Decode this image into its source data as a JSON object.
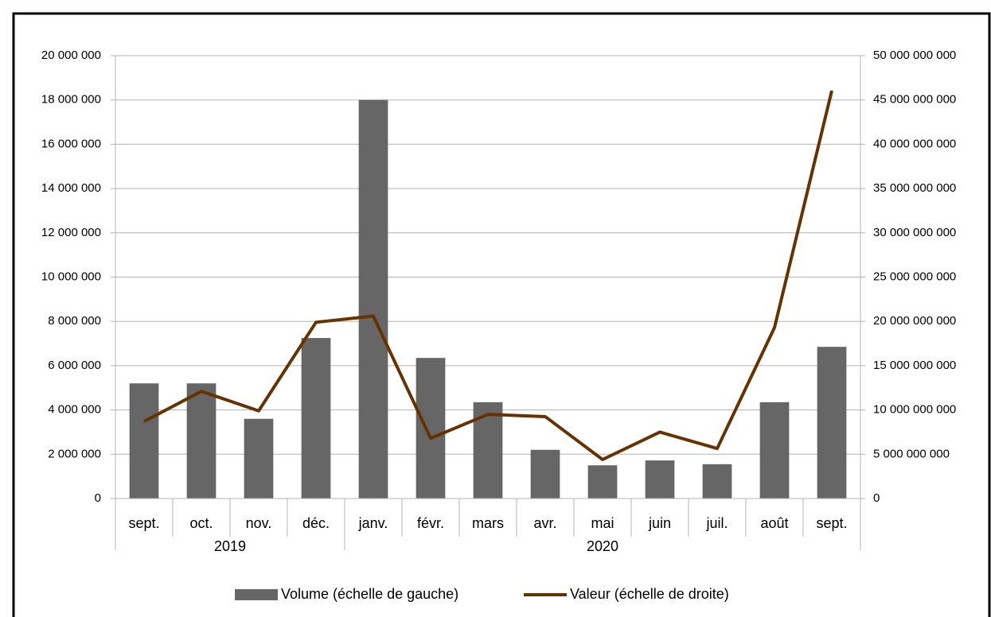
{
  "chart_data": {
    "type": "bar_line",
    "categories": [
      "sept.",
      "oct.",
      "nov.",
      "déc.",
      "janv.",
      "févr.",
      "mars",
      "avr.",
      "mai",
      "juin",
      "juil.",
      "août",
      "sept."
    ],
    "groups": [
      {
        "label": "2019",
        "count": 4
      },
      {
        "label": "2020",
        "count": 9
      }
    ],
    "series": [
      {
        "name": "Volume (échelle de gauche)",
        "type": "bar",
        "color": "#666666",
        "values": [
          5200000,
          5200000,
          3600000,
          7250000,
          18000000,
          6350000,
          4350000,
          2200000,
          1500000,
          1720000,
          1550000,
          4350000,
          6850000
        ]
      },
      {
        "name": "Valeur (échelle de droite)",
        "type": "line",
        "axis": "y2",
        "color": "#663300",
        "values": [
          8700000000,
          12100000000,
          9900000000,
          19900000000,
          20600000000,
          6800000000,
          9500000000,
          9250000000,
          4400000000,
          7500000000,
          5650000000,
          19300000000,
          46050000000
        ]
      }
    ],
    "ylim": [
      0,
      20000000
    ],
    "yticks": [
      0,
      {
        "value": 2000000,
        "label": "2 000 000"
      },
      {
        "value": 4000000,
        "label": "4 000 000"
      },
      {
        "value": 6000000,
        "label": "6 000 000"
      },
      {
        "value": 8000000,
        "label": "8 000 000"
      },
      {
        "value": 10000000,
        "label": "10 000 000"
      },
      {
        "value": 12000000,
        "label": "12 000 000"
      },
      {
        "value": 14000000,
        "label": "14 000 000"
      },
      {
        "value": 16000000,
        "label": "16 000 000"
      },
      {
        "value": 18000000,
        "label": "18 000 000"
      },
      {
        "value": 20000000,
        "label": "20 000 000"
      }
    ],
    "y2lim": [
      0,
      50000000000
    ],
    "y2ticks": [
      0,
      {
        "value": 5000000000,
        "label": "5 000 000 000"
      },
      {
        "value": 10000000000,
        "label": "10 000 000 000"
      },
      {
        "value": 15000000000,
        "label": "15 000 000 000"
      },
      {
        "value": 20000000000,
        "label": "20 000 000 000"
      },
      {
        "value": 25000000000,
        "label": "25 000 000 000"
      },
      {
        "value": 30000000000,
        "label": "30 000 000 000"
      },
      {
        "value": 35000000000,
        "label": "35 000 000 000"
      },
      {
        "value": 40000000000,
        "label": "40 000 000 000"
      },
      {
        "value": 45000000000,
        "label": "45 000 000 000"
      },
      {
        "value": 50000000000,
        "label": "50 000 000 000"
      }
    ],
    "grid": true,
    "legend": "bottom"
  }
}
